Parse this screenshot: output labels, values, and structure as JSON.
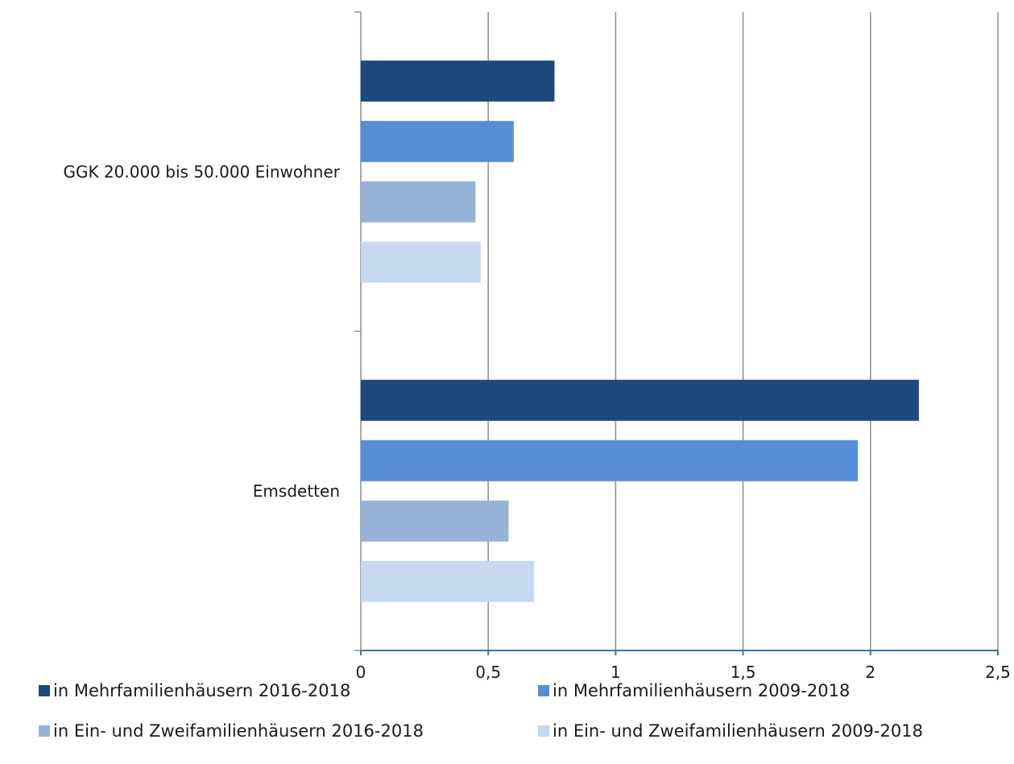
{
  "chart_data": {
    "type": "bar",
    "orientation": "horizontal",
    "categories": [
      "GGK 20.000 bis 50.000 Einwohner",
      "Emsdetten"
    ],
    "series": [
      {
        "name": "in Mehrfamilienhäusern 2016-2018",
        "color": "#1f497d",
        "values": [
          0.76,
          2.19
        ]
      },
      {
        "name": "in Mehrfamilienhäusern 2009-2018",
        "color": "#558ed5",
        "values": [
          0.6,
          1.95
        ]
      },
      {
        "name": "in Ein- und Zweifamilienhäusern 2016-2018",
        "color": "#95b3d7",
        "values": [
          0.45,
          0.58
        ]
      },
      {
        "name": "in Ein- und Zweifamilienhäusern 2009-2018",
        "color": "#c6d9f1",
        "values": [
          0.47,
          0.68
        ]
      }
    ],
    "xlim": [
      0,
      2.5
    ],
    "xticks": [
      0,
      0.5,
      1,
      1.5,
      2,
      2.5
    ],
    "xtick_labels": [
      "0",
      "0,5",
      "1",
      "1,5",
      "2",
      "2,5"
    ],
    "grid": "vertical",
    "legend_position": "bottom",
    "title": "",
    "xlabel": "",
    "ylabel": ""
  }
}
